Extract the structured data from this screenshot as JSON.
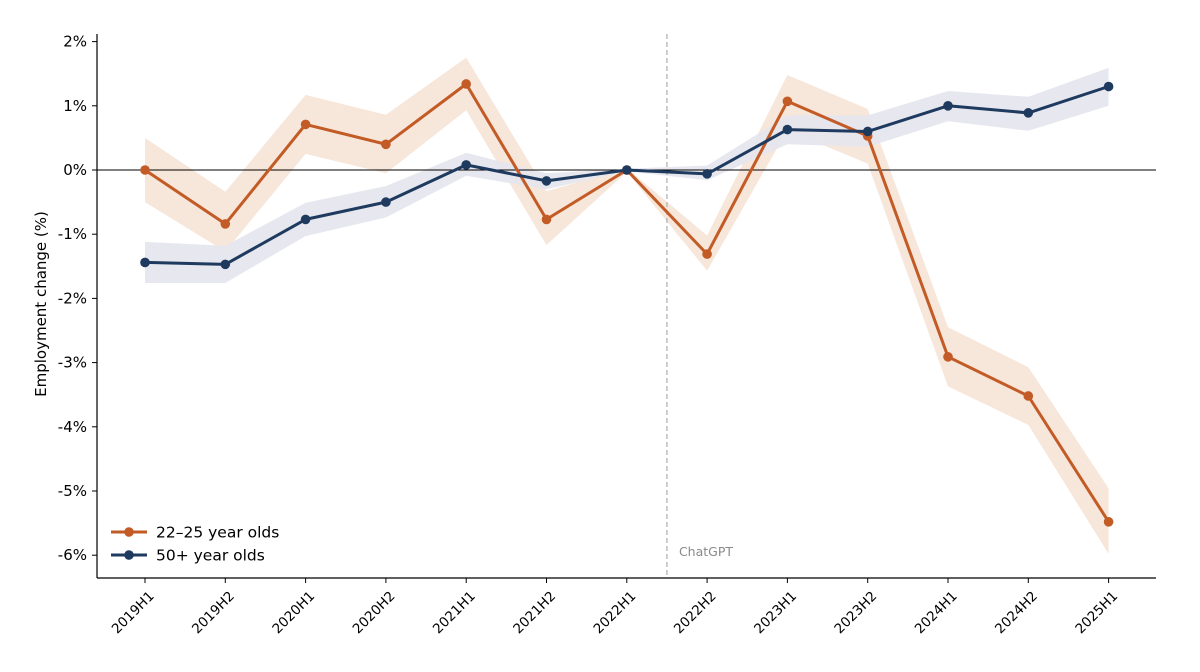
{
  "chart_data": {
    "type": "line",
    "title": "",
    "xlabel": "",
    "ylabel": "Employment change (%)",
    "ylim": [
      -6.35,
      2.1
    ],
    "yticks": [
      2,
      1,
      0,
      -1,
      -2,
      -3,
      -4,
      -5,
      -6
    ],
    "ytick_labels": [
      "2%",
      "1%",
      "0%",
      "-1%",
      "-2%",
      "-3%",
      "-4%",
      "-5%",
      "-6%"
    ],
    "categories": [
      "2019H1",
      "2019H2",
      "2020H1",
      "2020H2",
      "2021H1",
      "2021H2",
      "2022H1",
      "2022H2",
      "2023H1",
      "2023H2",
      "2024H1",
      "2024H2",
      "2025H1"
    ],
    "series": [
      {
        "name": "22–25 year olds",
        "color": "#c25b26",
        "band_color": "#f6e2d4",
        "values": [
          0.0,
          -0.84,
          0.71,
          0.4,
          1.34,
          -0.77,
          0.0,
          -1.31,
          1.07,
          0.53,
          -2.91,
          -3.52,
          -5.48
        ],
        "lower": [
          -0.5,
          -1.27,
          0.25,
          -0.05,
          0.93,
          -1.17,
          -0.03,
          -1.57,
          0.62,
          0.1,
          -3.37,
          -3.97,
          -5.98
        ],
        "upper": [
          0.5,
          -0.34,
          1.17,
          0.86,
          1.75,
          -0.33,
          0.03,
          -1.02,
          1.48,
          0.95,
          -2.45,
          -3.07,
          -4.96
        ]
      },
      {
        "name": "50+ year olds",
        "color": "#1f3a5f",
        "band_color": "#e4e6ed",
        "values": [
          -1.44,
          -1.47,
          -0.77,
          -0.5,
          0.08,
          -0.17,
          0.0,
          -0.06,
          0.63,
          0.6,
          1.0,
          0.89,
          1.3
        ],
        "lower": [
          -1.76,
          -1.76,
          -1.03,
          -0.74,
          -0.09,
          -0.3,
          -0.02,
          -0.16,
          0.4,
          0.36,
          0.76,
          0.61,
          1.0
        ],
        "upper": [
          -1.12,
          -1.18,
          -0.51,
          -0.25,
          0.27,
          -0.05,
          0.02,
          0.07,
          0.85,
          0.85,
          1.23,
          1.14,
          1.59
        ]
      }
    ],
    "reference_line": {
      "label": "ChatGPT",
      "position_between": [
        "2022H1",
        "2022H2"
      ]
    },
    "zero_line": 0,
    "grid": false,
    "legend": {
      "position": "bottom-left"
    },
    "colors": {
      "axis": "#000000",
      "reference_line": "#b3b3b3",
      "annotation": "#8a8a8a"
    }
  }
}
